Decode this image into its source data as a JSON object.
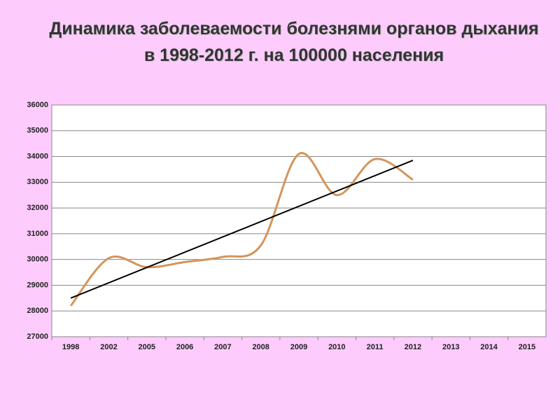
{
  "chart_data": {
    "type": "line",
    "title": "Динамика заболеваемости болезнями органов дыхания в 1998-2012 г. на 100000 населения",
    "categories": [
      "1998",
      "2002",
      "2005",
      "2006",
      "2007",
      "2008",
      "2009",
      "2010",
      "2011",
      "2012",
      "2013",
      "2014",
      "2015"
    ],
    "values": [
      28200,
      30050,
      29700,
      29900,
      30100,
      30550,
      34100,
      32500,
      33900,
      33100,
      null,
      null,
      null
    ],
    "color": "#d4955a",
    "smooth": true,
    "trendline": {
      "x": [
        "1998",
        "2012"
      ],
      "values": [
        28500,
        33850
      ],
      "color": "#000000"
    },
    "ylim": [
      27000,
      36000
    ],
    "yticks": [
      27000,
      28000,
      29000,
      30000,
      31000,
      32000,
      33000,
      34000,
      35000,
      36000
    ],
    "grid": true
  }
}
